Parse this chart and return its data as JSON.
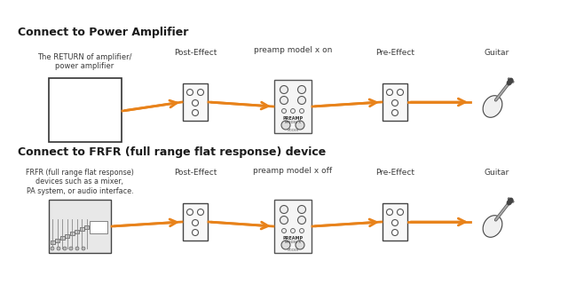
{
  "bg_color": "#ffffff",
  "title1": "Connect to Power Amplifier",
  "title2": "Connect to FRFR (full range flat response) device",
  "label_amp": "The RETURN of amplifier/\npower amplifier",
  "label_frfr": "FRFR (full range flat response)\ndevices such as a mixer,\nPA system, or audio interface.",
  "label_post_effect": "Post-Effect",
  "label_pre_effect": "Pre-Effect",
  "label_guitar": "Guitar",
  "label_preamp_on": "preamp model x on",
  "label_preamp_off": "preamp model x off",
  "arrow_color": "#E8821A",
  "text_color": "#3a3a3a",
  "title_color": "#1a1a1a",
  "box_color": "#333333",
  "label_mooer": "MOOER",
  "label_preamp": "PREAMP"
}
